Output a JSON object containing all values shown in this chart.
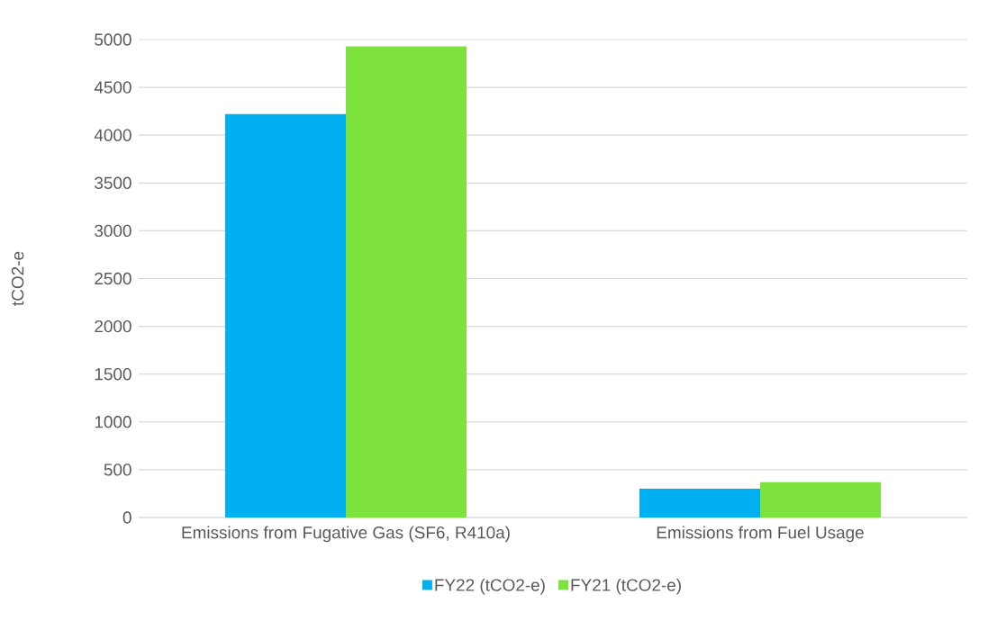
{
  "chart_data": {
    "type": "bar",
    "ylabel": "tCO2-e",
    "categories": [
      "Emissions from Fugative Gas (SF6, R410a)",
      "Emissions from Fuel Usage"
    ],
    "series": [
      {
        "name": "FY22 (tCO2-e)",
        "color": "#00b0f0",
        "values": [
          4220,
          300
        ]
      },
      {
        "name": "FY21 (tCO2-e)",
        "color": "#7ee23e",
        "values": [
          4930,
          370
        ]
      }
    ],
    "ylim": [
      0,
      5000
    ],
    "yticks": [
      0,
      500,
      1000,
      1500,
      2000,
      2500,
      3000,
      3500,
      4000,
      4500,
      5000
    ],
    "grid": "y",
    "legend": "bottom"
  }
}
